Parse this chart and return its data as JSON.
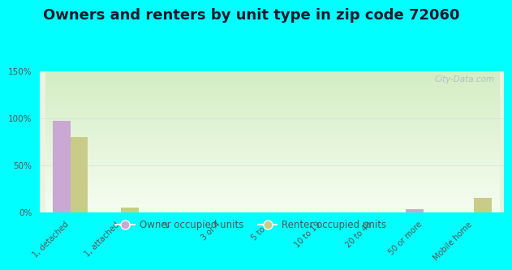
{
  "title": "Owners and renters by unit type in zip code 72060",
  "categories": [
    "1, detached",
    "1, attached",
    "2",
    "3 or 4",
    "5 to 9",
    "10 to 19",
    "20 to 49",
    "50 or more",
    "Mobile home"
  ],
  "owner_values": [
    97,
    0,
    0,
    0,
    0,
    0,
    0,
    3,
    0
  ],
  "renter_values": [
    80,
    5,
    0,
    0,
    0,
    0,
    0,
    0,
    15
  ],
  "owner_color": "#c9a8d4",
  "renter_color": "#c8cc88",
  "background_color": "#00ffff",
  "ylim": [
    0,
    150
  ],
  "yticks": [
    0,
    50,
    100,
    150
  ],
  "ytick_labels": [
    "0%",
    "50%",
    "100%",
    "150%"
  ],
  "bar_width": 0.35,
  "title_fontsize": 13,
  "legend_labels": [
    "Owner occupied units",
    "Renter occupied units"
  ],
  "watermark": "City-Data.com"
}
